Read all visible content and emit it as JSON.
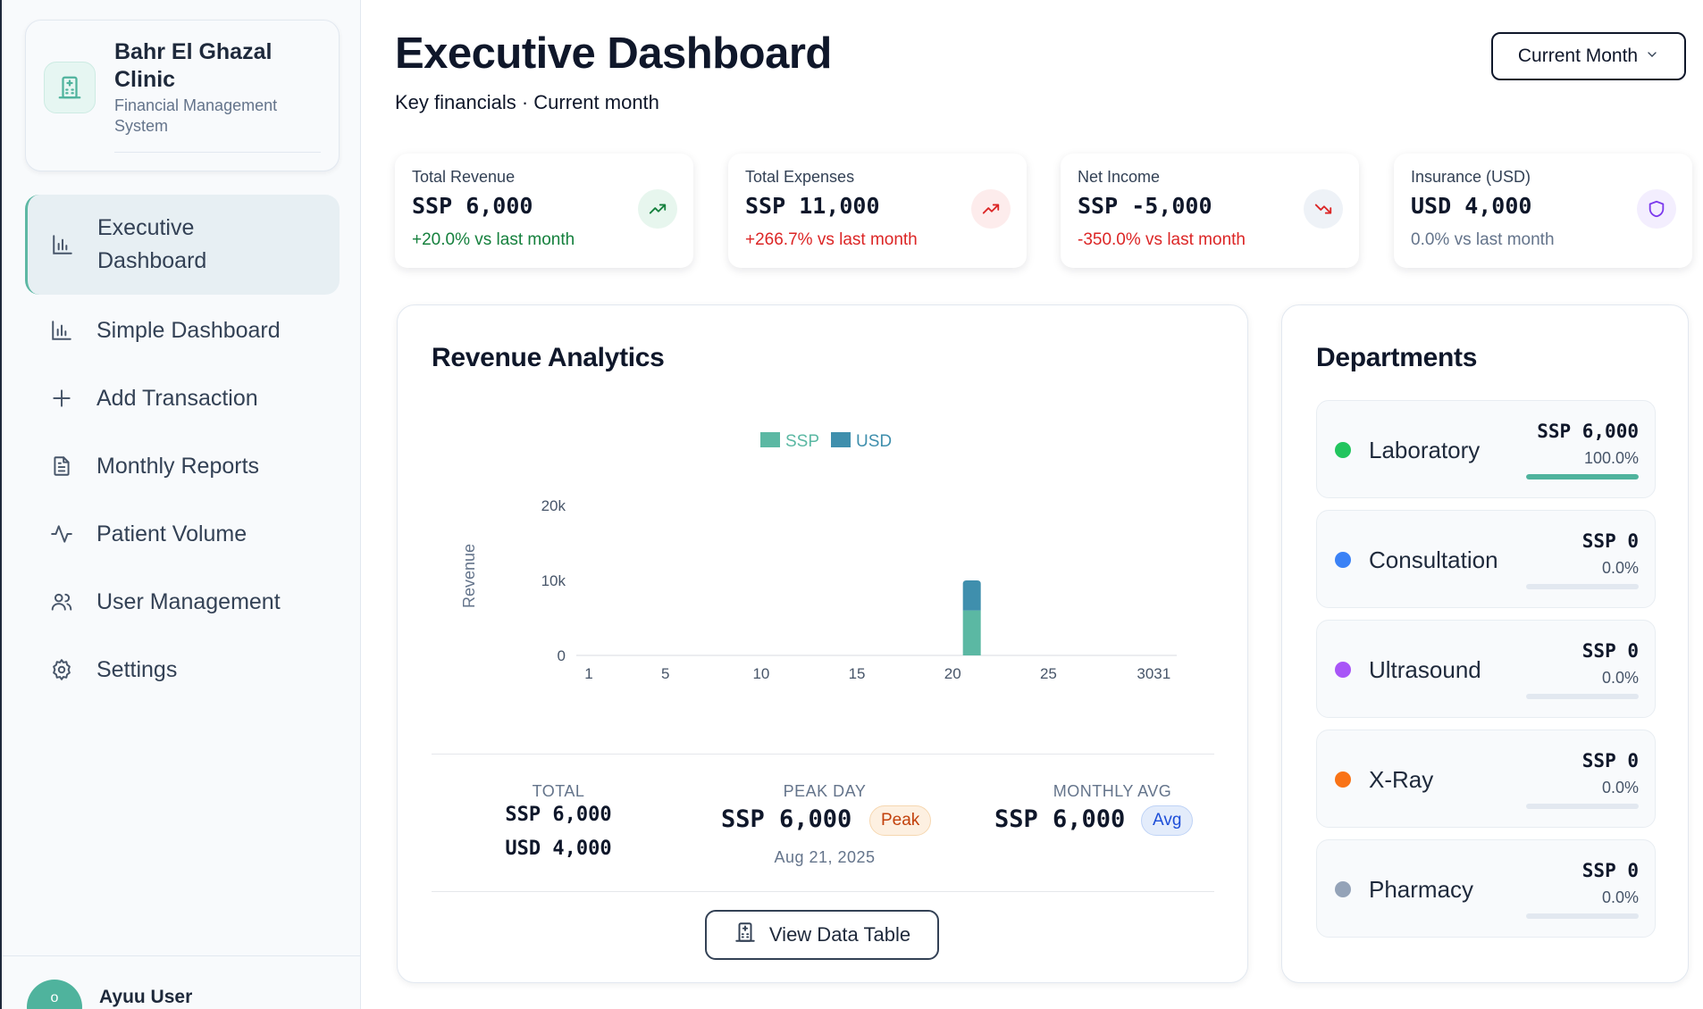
{
  "brand": {
    "name": "Bahr El Ghazal Clinic",
    "subtitle": "Financial Management System"
  },
  "nav": [
    {
      "label": "Executive Dashboard",
      "icon": "bar-chart-icon",
      "active": true
    },
    {
      "label": "Simple Dashboard",
      "icon": "bar-chart-icon"
    },
    {
      "label": "Add Transaction",
      "icon": "plus-icon"
    },
    {
      "label": "Monthly Reports",
      "icon": "document-icon"
    },
    {
      "label": "Patient Volume",
      "icon": "activity-icon"
    },
    {
      "label": "User Management",
      "icon": "users-icon"
    },
    {
      "label": "Settings",
      "icon": "gear-icon"
    }
  ],
  "user": {
    "name": "Ayuu User",
    "avatar_glyph": "o"
  },
  "header": {
    "title": "Executive Dashboard",
    "subtitle": "Key financials · Current month",
    "period": "Current Month"
  },
  "kpis": [
    {
      "label": "Total Revenue",
      "value": "SSP 6,000",
      "change": "+20.0% vs last month",
      "color": "#15803d",
      "icon": "trending-up-icon"
    },
    {
      "label": "Total Expenses",
      "value": "SSP 11,000",
      "change": "+266.7% vs last month",
      "color": "#dc2626",
      "icon": "trending-up-icon"
    },
    {
      "label": "Net Income",
      "value": "SSP -5,000",
      "change": "-350.0% vs last month",
      "color": "#dc2626",
      "icon": "trending-down-icon"
    },
    {
      "label": "Insurance (USD)",
      "value": "USD 4,000",
      "change": "0.0% vs last month",
      "color": "#64748b",
      "icon": "shield-icon"
    }
  ],
  "revenue": {
    "title": "Revenue Analytics",
    "total_label": "TOTAL",
    "total_ssp": "SSP 6,000",
    "total_usd": "USD 4,000",
    "peak_label": "PEAK DAY",
    "peak_value": "SSP 6,000",
    "peak_badge": "Peak",
    "peak_date": "Aug 21, 2025",
    "avg_label": "MONTHLY AVG",
    "avg_value": "SSP 6,000",
    "avg_badge": "Avg",
    "button": "View Data Table"
  },
  "chart_data": {
    "type": "bar",
    "stacked": true,
    "ylabel": "Revenue",
    "xlabel": "",
    "ylim": [
      0,
      20000
    ],
    "y_ticks": [
      "0",
      "10k",
      "20k"
    ],
    "x_ticks": [
      "1",
      "5",
      "10",
      "15",
      "20",
      "25",
      "3031"
    ],
    "xlim": [
      1,
      31
    ],
    "legend_position": "top-center",
    "grid": false,
    "series": [
      {
        "name": "SSP",
        "color": "#5bb8a3",
        "points": [
          {
            "day": 21,
            "value": 6000
          }
        ]
      },
      {
        "name": "USD",
        "color": "#3f8fad",
        "points": [
          {
            "day": 21,
            "value": 4000
          }
        ]
      }
    ]
  },
  "departments": {
    "title": "Departments",
    "items": [
      {
        "name": "Laboratory",
        "amount": "SSP 6,000",
        "percent": "100.0%",
        "share": 1.0,
        "color": "#22c55e",
        "bar_color": "#4fb39d"
      },
      {
        "name": "Consultation",
        "amount": "SSP 0",
        "percent": "0.0%",
        "share": 0,
        "color": "#3b82f6",
        "bar_color": "#4fb39d"
      },
      {
        "name": "Ultrasound",
        "amount": "SSP 0",
        "percent": "0.0%",
        "share": 0,
        "color": "#a855f7",
        "bar_color": "#4fb39d"
      },
      {
        "name": "X-Ray",
        "amount": "SSP 0",
        "percent": "0.0%",
        "share": 0,
        "color": "#f97316",
        "bar_color": "#4fb39d"
      },
      {
        "name": "Pharmacy",
        "amount": "SSP 0",
        "percent": "0.0%",
        "share": 0,
        "color": "#94a3b8",
        "bar_color": "#4fb39d"
      }
    ]
  }
}
